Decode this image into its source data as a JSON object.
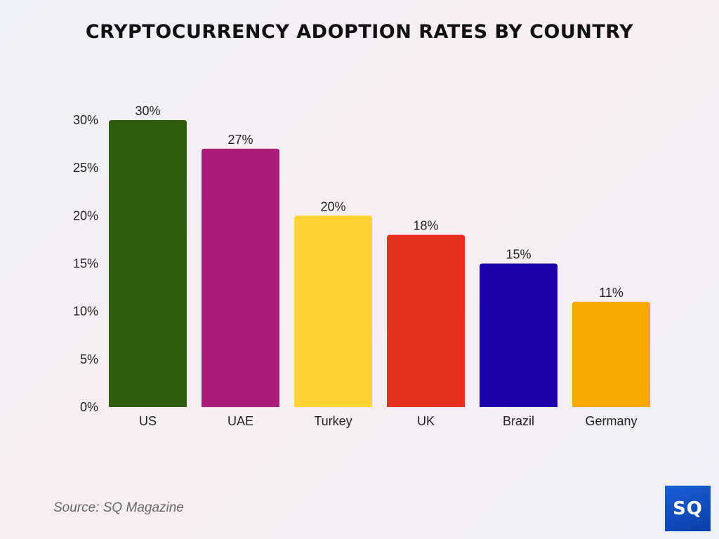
{
  "chart_data": {
    "type": "bar",
    "title": "CRYPTOCURRENCY ADOPTION RATES BY COUNTRY",
    "categories": [
      "US",
      "UAE",
      "Turkey",
      "UK",
      "Brazil",
      "Germany"
    ],
    "values": [
      30,
      27,
      20,
      18,
      15,
      11
    ],
    "data_labels": [
      "30%",
      "27%",
      "20%",
      "18%",
      "15%",
      "11%"
    ],
    "colors": [
      "#2f5e10",
      "#a91e78",
      "#fed231",
      "#e8301e",
      "#1c00a8",
      "#f9a602"
    ],
    "yticks": [
      0,
      5,
      10,
      15,
      20,
      25,
      30
    ],
    "ytick_labels": [
      "0%",
      "5%",
      "10%",
      "15%",
      "20%",
      "25%",
      "30%"
    ],
    "ylim": [
      0,
      30
    ],
    "xlabel": "",
    "ylabel": "",
    "grid": false,
    "legend": "none"
  },
  "source": "Source: SQ Magazine",
  "logo": "SQ"
}
